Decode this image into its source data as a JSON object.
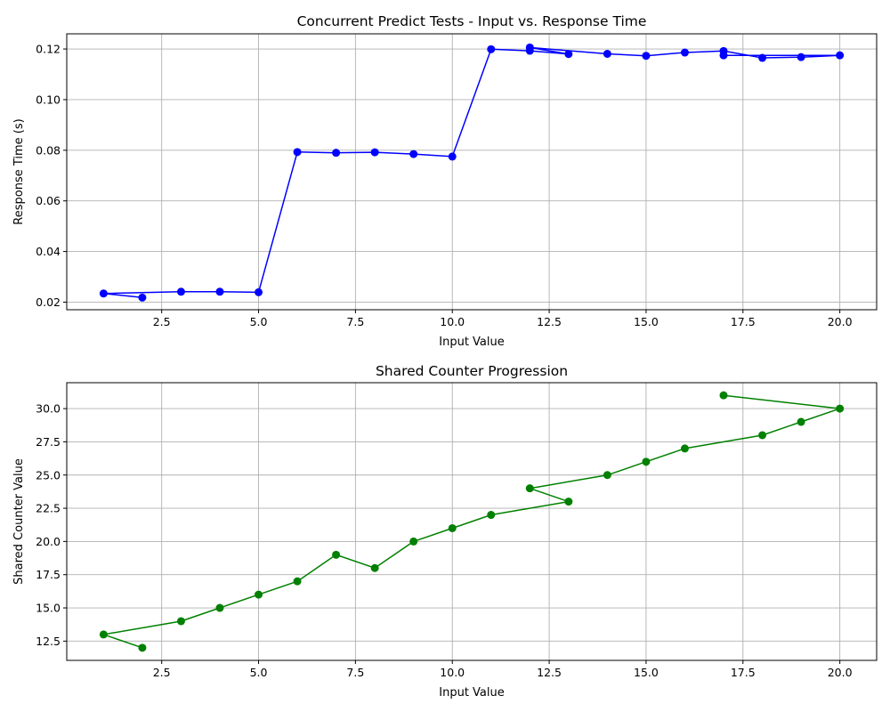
{
  "chart_data": [
    {
      "type": "line",
      "title": "Concurrent Predict Tests - Input vs. Response Time",
      "xlabel": "Input Value",
      "ylabel": "Response Time (s)",
      "xlim": [
        0.05,
        20.95
      ],
      "ylim": [
        0.017,
        0.126
      ],
      "xticks": [
        "2.5",
        "5.0",
        "7.5",
        "10.0",
        "12.5",
        "15.0",
        "17.5",
        "20.0"
      ],
      "yticks": [
        "0.02",
        "0.04",
        "0.06",
        "0.08",
        "0.10",
        "0.12"
      ],
      "grid": true,
      "color": "#0000ff",
      "marker": "circle",
      "series": [
        {
          "x": [
            2,
            1,
            3,
            4,
            5,
            6,
            7,
            8,
            9,
            10,
            11,
            12,
            13,
            12,
            14,
            15,
            16,
            17,
            18,
            19,
            20,
            17
          ],
          "y": [
            0.0218,
            0.0234,
            0.0241,
            0.0241,
            0.0239,
            0.0793,
            0.079,
            0.0792,
            0.0785,
            0.0775,
            0.1199,
            0.1193,
            0.118,
            0.1206,
            0.1181,
            0.1173,
            0.1186,
            0.1192,
            0.1165,
            0.1168,
            0.1175,
            0.1175
          ]
        }
      ]
    },
    {
      "type": "line",
      "title": "Shared Counter Progression",
      "xlabel": "Input Value",
      "ylabel": "Shared Counter Value",
      "xlim": [
        0.05,
        20.95
      ],
      "ylim": [
        11.05,
        31.95
      ],
      "xticks": [
        "2.5",
        "5.0",
        "7.5",
        "10.0",
        "12.5",
        "15.0",
        "17.5",
        "20.0"
      ],
      "yticks": [
        "12.5",
        "15.0",
        "17.5",
        "20.0",
        "22.5",
        "25.0",
        "27.5",
        "30.0"
      ],
      "grid": true,
      "color": "#008000",
      "marker": "circle",
      "series": [
        {
          "x": [
            2,
            1,
            3,
            4,
            5,
            6,
            7,
            8,
            9,
            10,
            11,
            13,
            12,
            14,
            15,
            16,
            18,
            19,
            20,
            17
          ],
          "y": [
            12,
            13,
            14,
            15,
            16,
            17,
            19,
            18,
            20,
            21,
            22,
            23,
            24,
            25,
            26,
            27,
            28,
            29,
            30,
            31
          ]
        }
      ]
    }
  ]
}
